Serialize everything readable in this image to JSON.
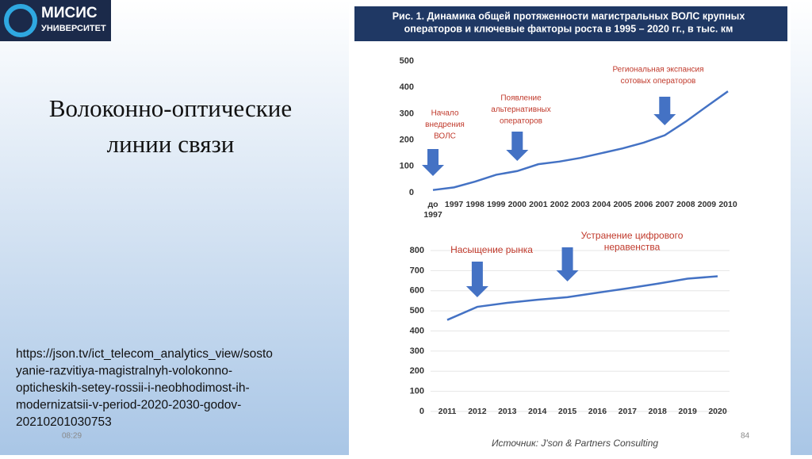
{
  "slide": {
    "logo": [
      "МИСИС",
      "УНИВЕРСИТЕТ"
    ],
    "title": [
      "Волоконно-оптические",
      "линии связи"
    ],
    "url": [
      "https://json.tv/ict_telecom_analytics_view/sosto",
      "yanie-razvitiya-magistralnyh-volokonno-",
      "opticheskih-setey-rossii-i-neobhodimost-ih-",
      "modernizatsii-v-period-2020-2030-godov-",
      "20210201030753"
    ],
    "time": "08:29",
    "page": "84"
  },
  "figure": {
    "title": [
      "Рис. 1. Динамика общей протяженности магистральных ВОЛС крупных",
      "операторов и ключевые факторы роста в 1995 – 2020 гг., в тыс. км"
    ],
    "source": "Источник: J'son & Partners Consulting"
  },
  "chart_data": [
    {
      "type": "line",
      "categories": [
        "до 1997",
        "1997",
        "1998",
        "1999",
        "2000",
        "2001",
        "2002",
        "2003",
        "2004",
        "2005",
        "2006",
        "2007",
        "2008",
        "2009",
        "2010"
      ],
      "values": [
        10,
        20,
        42,
        68,
        82,
        108,
        118,
        132,
        150,
        168,
        190,
        218,
        270,
        328,
        385
      ],
      "color": "#4472c4",
      "ylim": [
        0,
        500
      ],
      "yticks": [
        0,
        100,
        200,
        300,
        400,
        500
      ],
      "grid": false,
      "annotations": [
        [
          "Начало",
          "внедрения",
          "ВОЛС"
        ],
        [
          "Появление",
          "альтернативных",
          "операторов"
        ],
        [
          "Региональная экспансия",
          "сотовых операторов"
        ]
      ]
    },
    {
      "type": "line",
      "categories": [
        "2011",
        "2012",
        "2013",
        "2014",
        "2015",
        "2016",
        "2017",
        "2018",
        "2019",
        "2020"
      ],
      "values": [
        455,
        520,
        540,
        555,
        568,
        590,
        612,
        635,
        660,
        672
      ],
      "color": "#4472c4",
      "ylim": [
        0,
        800
      ],
      "yticks": [
        0,
        100,
        200,
        300,
        400,
        500,
        600,
        700,
        800
      ],
      "grid": true,
      "annotations": [
        [
          "Насыщение рынка"
        ],
        [
          "Устранение цифрового",
          "неравенства"
        ]
      ]
    }
  ]
}
